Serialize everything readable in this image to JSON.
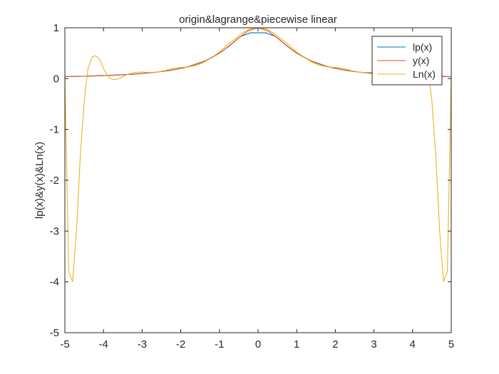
{
  "chart_data": {
    "type": "line",
    "title": "origin&lagrange&piecewise linear",
    "xlabel": "",
    "ylabel": "lp(x)&y(x)&Ln(x)",
    "xlim": [
      -5,
      5
    ],
    "ylim": [
      -5,
      1
    ],
    "xticks": [
      "-5",
      "-4",
      "-3",
      "-2",
      "-1",
      "0",
      "1",
      "2",
      "3",
      "4",
      "5"
    ],
    "yticks": [
      "-5",
      "-4",
      "-3",
      "-2",
      "-1",
      "0",
      "1"
    ],
    "grid": false,
    "legend_position": "top-right",
    "series": [
      {
        "name": "lp(x)",
        "color": "#0072BD",
        "x": [
          -5,
          -4.5455,
          -4.0909,
          -3.6364,
          -3.1818,
          -2.7273,
          -2.2727,
          -1.8182,
          -1.3636,
          -0.9091,
          -0.4545,
          -0.2,
          0.2,
          0.4545,
          0.9091,
          1.3636,
          1.8182,
          2.2727,
          2.7273,
          3.1818,
          3.6364,
          4.0909,
          4.5455,
          5
        ],
        "y": [
          0.0385,
          0.0462,
          0.0564,
          0.0703,
          0.0899,
          0.1185,
          0.1622,
          0.2322,
          0.3497,
          0.5475,
          0.8288,
          0.9,
          0.9,
          0.8288,
          0.5475,
          0.3497,
          0.2322,
          0.1622,
          0.1185,
          0.0899,
          0.0703,
          0.0564,
          0.0462,
          0.0385
        ]
      },
      {
        "name": "y(x)",
        "color": "#D95319",
        "x": [
          -5,
          -4.5,
          -4,
          -3.5,
          -3,
          -2.5,
          -2,
          -1.75,
          -1.5,
          -1.25,
          -1,
          -0.75,
          -0.5,
          -0.25,
          0,
          0.25,
          0.5,
          0.75,
          1,
          1.25,
          1.5,
          1.75,
          2,
          2.5,
          3,
          3.5,
          4,
          4.5,
          5
        ],
        "y": [
          0.0385,
          0.0471,
          0.0588,
          0.0755,
          0.1,
          0.1379,
          0.2,
          0.2462,
          0.3077,
          0.3902,
          0.5,
          0.64,
          0.8,
          0.9412,
          1.0,
          0.9412,
          0.8,
          0.64,
          0.5,
          0.3902,
          0.3077,
          0.2462,
          0.2,
          0.1379,
          0.1,
          0.0755,
          0.0588,
          0.0471,
          0.0385
        ]
      },
      {
        "name": "Ln(x)",
        "color": "#EDB120",
        "x": [
          -5,
          -4.9,
          -4.8,
          -4.7,
          -4.6,
          -4.5,
          -4.4,
          -4.3,
          -4.2,
          -4.1,
          -4,
          -3.9,
          -3.8,
          -3.7,
          -3.6,
          -3.5,
          -3.4,
          -3.2,
          -3,
          -2.8,
          -2.6,
          -2.4,
          -2.2,
          -2,
          -1.8,
          -1.6,
          -1.4,
          -1.2,
          -1,
          -0.8,
          -0.6,
          -0.4,
          -0.2,
          0,
          0.2,
          0.4,
          0.6,
          0.8,
          1,
          1.2,
          1.4,
          1.6,
          1.8,
          2,
          2.2,
          2.4,
          2.6,
          2.8,
          3,
          3.2,
          3.4,
          3.5,
          3.6,
          3.7,
          3.8,
          3.9,
          4,
          4.1,
          4.2,
          4.3,
          4.4,
          4.5,
          4.6,
          4.7,
          4.8,
          4.9,
          5
        ],
        "y": [
          0.04,
          -3.8,
          -4.0,
          -3.0,
          -1.5,
          -0.45,
          0.2,
          0.42,
          0.45,
          0.38,
          0.2,
          0.06,
          -0.01,
          -0.02,
          0.0,
          0.04,
          0.08,
          0.12,
          0.13,
          0.12,
          0.13,
          0.16,
          0.2,
          0.22,
          0.23,
          0.26,
          0.32,
          0.42,
          0.52,
          0.66,
          0.78,
          0.9,
          0.98,
          1.0,
          0.98,
          0.9,
          0.78,
          0.66,
          0.52,
          0.42,
          0.32,
          0.26,
          0.23,
          0.22,
          0.2,
          0.16,
          0.13,
          0.12,
          0.13,
          0.12,
          0.08,
          0.04,
          0.0,
          -0.02,
          -0.01,
          0.06,
          0.2,
          0.38,
          0.45,
          0.42,
          0.2,
          -0.45,
          -1.5,
          -3.0,
          -4.0,
          -3.8,
          0.04
        ]
      }
    ]
  }
}
